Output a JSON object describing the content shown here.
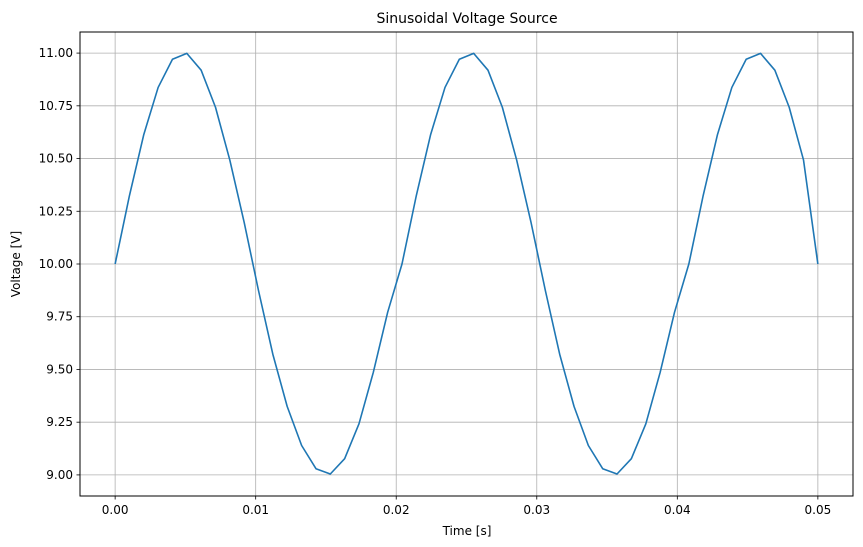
{
  "chart_data": {
    "type": "line",
    "title": "Sinusoidal Voltage Source",
    "xlabel": "Time [s]",
    "ylabel": "Voltage [V]",
    "xlim": [
      -0.0025,
      0.0525
    ],
    "ylim": [
      8.9,
      11.1
    ],
    "grid": true,
    "xticks": [
      0.0,
      0.01,
      0.02,
      0.03,
      0.04,
      0.05
    ],
    "xtick_labels": [
      "0.00",
      "0.01",
      "0.02",
      "0.03",
      "0.04",
      "0.05"
    ],
    "yticks": [
      9.0,
      9.25,
      9.5,
      9.75,
      10.0,
      10.25,
      10.5,
      10.75,
      11.0
    ],
    "ytick_labels": [
      "9.00",
      "9.25",
      "9.50",
      "9.75",
      "10.00",
      "10.25",
      "10.50",
      "10.75",
      "11.00"
    ],
    "colors": {
      "series": "#1f77b4",
      "grid": "#b0b0b0"
    },
    "series": [
      {
        "x": [
          0.0,
          0.00102,
          0.00204,
          0.00306,
          0.00408,
          0.0051,
          0.00612,
          0.00714,
          0.00816,
          0.00918,
          0.0102,
          0.01122,
          0.01224,
          0.01327,
          0.01429,
          0.01531,
          0.01633,
          0.01735,
          0.01837,
          0.01939,
          0.02041,
          0.02143,
          0.02245,
          0.02347,
          0.02449,
          0.02551,
          0.02653,
          0.02755,
          0.02857,
          0.02959,
          0.03061,
          0.03163,
          0.03265,
          0.03367,
          0.03469,
          0.03571,
          0.03673,
          0.03776,
          0.03878,
          0.0398,
          0.04082,
          0.04184,
          0.04286,
          0.04388,
          0.0449,
          0.04592,
          0.04694,
          0.04796,
          0.04898,
          0.05
        ],
        "y": [
          10.0,
          10.3247,
          10.6142,
          10.8372,
          10.9709,
          10.9987,
          10.919,
          10.7431,
          10.4927,
          10.1976,
          9.8743,
          9.5722,
          9.3249,
          9.1394,
          9.0294,
          9.0043,
          9.077,
          9.2422,
          9.4865,
          9.7709,
          10.0,
          10.3247,
          10.6142,
          10.8372,
          10.9709,
          10.9987,
          10.919,
          10.7431,
          10.4927,
          10.1976,
          9.8743,
          9.5722,
          9.3249,
          9.1394,
          9.0294,
          9.0043,
          9.077,
          9.2422,
          9.4865,
          9.7709,
          10.0,
          10.3247,
          10.6142,
          10.8372,
          10.9709,
          10.9987,
          10.919,
          10.7431,
          10.4927,
          10.0
        ]
      }
    ]
  }
}
